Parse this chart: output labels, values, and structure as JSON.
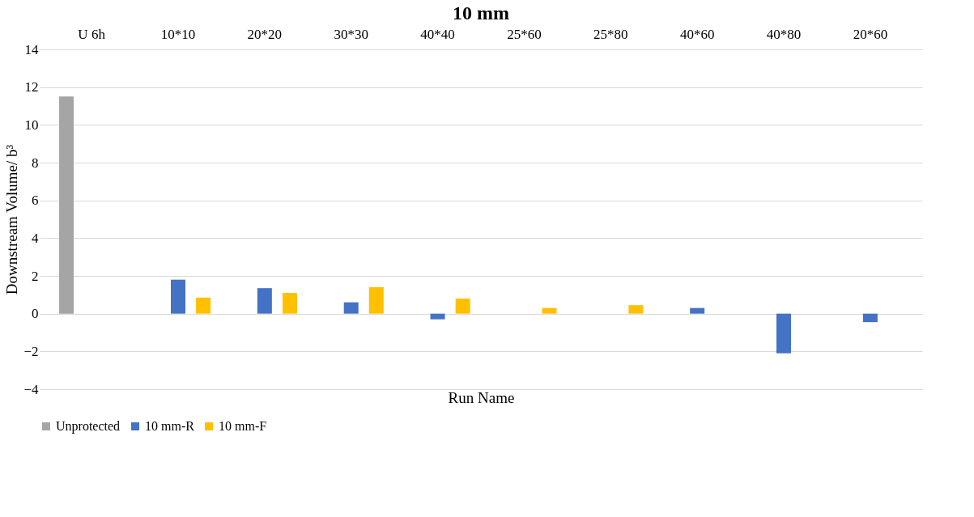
{
  "chart_data": {
    "type": "bar",
    "title": "10 mm",
    "xlabel": "Run Name",
    "ylabel": "Downstream Volume/ b³",
    "categories": [
      "U 6h",
      "10*10",
      "20*20",
      "30*30",
      "40*40",
      "25*60",
      "25*80",
      "40*60",
      "40*80",
      "20*60"
    ],
    "series": [
      {
        "name": "Unprotected",
        "color": "#a5a5a5",
        "values": [
          11.5,
          null,
          null,
          null,
          null,
          null,
          null,
          null,
          null,
          null
        ]
      },
      {
        "name": "10 mm-R",
        "color": "#4472c4",
        "values": [
          null,
          1.8,
          1.35,
          0.6,
          -0.3,
          null,
          null,
          0.3,
          -2.1,
          -0.45
        ]
      },
      {
        "name": "10 mm-F",
        "color": "#ffc000",
        "values": [
          null,
          0.85,
          1.1,
          1.4,
          0.8,
          0.3,
          0.45,
          null,
          null,
          null
        ]
      }
    ],
    "ylim": [
      -4,
      14
    ],
    "yticks": [
      -4,
      -2,
      0,
      2,
      4,
      6,
      8,
      10,
      12,
      14
    ],
    "grid": "y",
    "legend": "bottom"
  }
}
